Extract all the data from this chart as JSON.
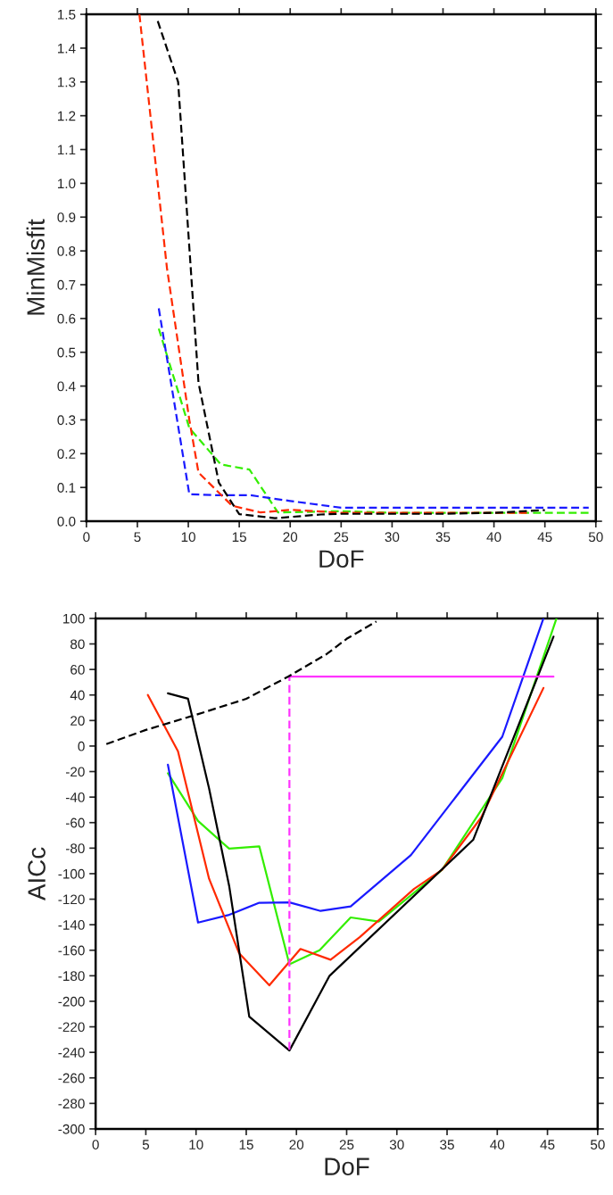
{
  "chart_data": [
    {
      "type": "line",
      "xlabel": "DoF",
      "ylabel": "MinMisfit",
      "xlim": [
        0,
        50
      ],
      "ylim": [
        0,
        1.5
      ],
      "xticks": [
        0,
        5,
        10,
        15,
        20,
        25,
        30,
        35,
        40,
        45,
        50
      ],
      "yticks": [
        {
          "value": 0,
          "label": "0.0"
        },
        0.1,
        0.2,
        0.3,
        0.4,
        0.5,
        0.6,
        0.7,
        0.8,
        0.9,
        {
          "value": 1,
          "label": "1.0"
        },
        1.1,
        1.2,
        1.3,
        1.4,
        1.5
      ],
      "grid": false,
      "legend": false,
      "marker": "none",
      "line_style": "dashed",
      "series": [
        {
          "color": "#000000",
          "x": [
            7,
            9,
            11,
            13,
            15,
            18.5,
            23,
            25,
            30,
            35,
            40,
            45
          ],
          "values": [
            1.48,
            1.3,
            0.41,
            0.114,
            0.021,
            0.009,
            0.02,
            0.022,
            0.022,
            0.022,
            0.025,
            0.033
          ]
        },
        {
          "color": "#ff2a00",
          "x": [
            5.2,
            7.9,
            10.1,
            11,
            14.3,
            17.1,
            20.1,
            25,
            30,
            35,
            40,
            43.5
          ],
          "values": [
            1.5,
            0.75,
            0.3,
            0.144,
            0.046,
            0.026,
            0.034,
            0.025,
            0.025,
            0.025,
            0.025,
            0.025
          ]
        },
        {
          "color": "#1a1aff",
          "x": [
            7.1,
            10.1,
            13,
            16.1,
            20,
            25,
            30,
            35,
            40,
            45,
            49.3
          ],
          "values": [
            0.63,
            0.08,
            0.077,
            0.077,
            0.06,
            0.04,
            0.04,
            0.04,
            0.04,
            0.04,
            0.04
          ]
        },
        {
          "color": "#33ee00",
          "x": [
            7.1,
            10.1,
            13.2,
            16,
            18.8,
            25,
            30,
            35,
            40,
            45,
            49.3
          ],
          "values": [
            0.57,
            0.276,
            0.168,
            0.153,
            0.026,
            0.03,
            0.025,
            0.025,
            0.025,
            0.025,
            0.025
          ]
        }
      ]
    },
    {
      "type": "line",
      "xlabel": "DoF",
      "ylabel": "AICc",
      "xlim": [
        0,
        50
      ],
      "ylim": [
        -300,
        100
      ],
      "xticks": [
        0,
        5,
        10,
        15,
        20,
        25,
        30,
        35,
        40,
        45,
        50
      ],
      "yticks": [
        -300,
        -280,
        -260,
        -240,
        -220,
        -200,
        -180,
        -160,
        -140,
        -120,
        -100,
        -80,
        -60,
        -40,
        -20,
        0,
        20,
        40,
        60,
        80,
        100
      ],
      "grid": false,
      "legend": false,
      "marker": "none",
      "series": [
        {
          "color": "#000000",
          "line_style": "dashed",
          "x": [
            1.07,
            5,
            10,
            15,
            19.2,
            23,
            25,
            27.96
          ],
          "values": [
            1.5,
            12.6,
            24.5,
            37,
            54.5,
            72,
            84,
            97.6
          ]
        },
        {
          "color": "#ff33ff",
          "line_style": "dashed",
          "x": [
            19.3,
            19.3
          ],
          "values": [
            -238,
            54.4
          ]
        },
        {
          "color": "#ff33ff",
          "line_style": "solid",
          "x": [
            19.3,
            45.6
          ],
          "values": [
            54.4,
            54.4
          ]
        },
        {
          "color": "#000000",
          "line_style": "solid",
          "x": [
            7.2,
            9.2,
            11.3,
            13.3,
            15.3,
            19.3,
            23.3,
            37.6,
            45.6
          ],
          "values": [
            41.3,
            37.1,
            -33.3,
            -109.6,
            -212,
            -238.6,
            -180,
            -73.5,
            85.7
          ]
        },
        {
          "color": "#ff2a00",
          "line_style": "solid",
          "x": [
            5.2,
            8.2,
            11.3,
            14.3,
            17.3,
            20.4,
            23.4,
            26.3,
            31.7,
            34.5,
            38.4,
            44.6
          ],
          "values": [
            40,
            -4,
            -104,
            -162.5,
            -187.5,
            -159,
            -167.4,
            -149.8,
            -112,
            -97,
            -56,
            45.5
          ]
        },
        {
          "color": "#1a1aff",
          "line_style": "solid",
          "x": [
            7.2,
            10.2,
            13.2,
            16.3,
            19.3,
            22.4,
            25.4,
            31.4,
            40.5,
            44.6
          ],
          "values": [
            -14.7,
            -138.3,
            -132.5,
            -122.8,
            -122.5,
            -129.2,
            -125.6,
            -85.4,
            7.3,
            100
          ]
        },
        {
          "color": "#33ee00",
          "line_style": "solid",
          "x": [
            7.2,
            10.2,
            13.3,
            16.3,
            19.3,
            22.3,
            25.4,
            28.2,
            34.5,
            40.5,
            45.9
          ],
          "values": [
            -21.3,
            -58.7,
            -80.4,
            -78.6,
            -171,
            -160,
            -134.3,
            -137.6,
            -97,
            -25.2,
            100
          ]
        }
      ]
    }
  ]
}
